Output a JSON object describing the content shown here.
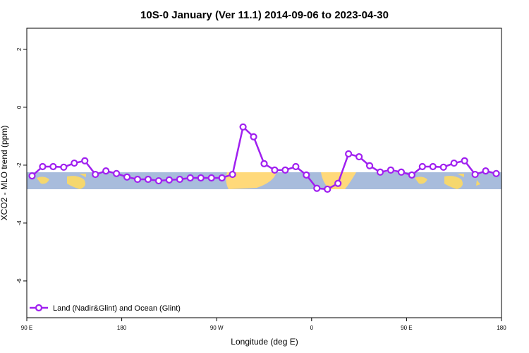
{
  "chart_data": {
    "type": "line",
    "title": "10S-0 January (Ver 11.1)   2014-09-06 to 2023-04-30",
    "x_label": "Longitude (deg E)",
    "y_label": "XCO2 - MLO trend (ppm)",
    "x": [
      95,
      105,
      115,
      125,
      135,
      145,
      155,
      165,
      175,
      185,
      195,
      205,
      215,
      225,
      235,
      245,
      255,
      265,
      275,
      285,
      295,
      305,
      315,
      325,
      335,
      345,
      355,
      365,
      375,
      385,
      395,
      405,
      415,
      425,
      435,
      445,
      455,
      465,
      475,
      485,
      495,
      505,
      515,
      525,
      535
    ],
    "series": [
      {
        "name": "Land (Nadir&Glint) and Ocean (Glint)",
        "color": "#a020f0",
        "values": [
          -2.37,
          -2.05,
          -2.05,
          -2.07,
          -1.93,
          -1.85,
          -2.32,
          -2.2,
          -2.29,
          -2.41,
          -2.49,
          -2.49,
          -2.54,
          -2.51,
          -2.49,
          -2.44,
          -2.44,
          -2.44,
          -2.44,
          -2.32,
          -0.68,
          -1.02,
          -1.95,
          -2.17,
          -2.17,
          -2.05,
          -2.34,
          -2.8,
          -2.83,
          -2.63,
          -1.61,
          -1.71,
          -2.02,
          -2.24,
          -2.17,
          -2.24,
          -2.34,
          -2.05,
          -2.05,
          -2.07,
          -1.93,
          -1.85,
          -2.32,
          -2.2,
          -2.29
        ]
      }
    ],
    "xlim": [
      90,
      540
    ],
    "xticks": [
      {
        "value": 90,
        "label": "90 E"
      },
      180,
      {
        "value": 270,
        "label": "90 W"
      },
      {
        "value": 360,
        "label": "0"
      },
      {
        "value": 450,
        "label": "90 E"
      },
      {
        "value": 540,
        "label": "180"
      }
    ],
    "ylim": [
      -7.27,
      2.73
    ],
    "yticks": [
      2,
      0,
      -2,
      -4,
      -6
    ],
    "legend": "bottom-left"
  }
}
